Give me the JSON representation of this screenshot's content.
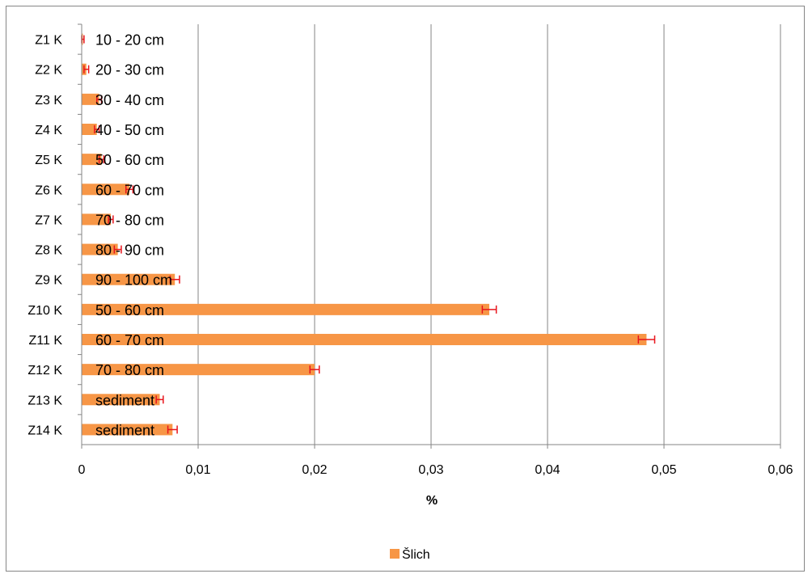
{
  "chart_data": {
    "type": "bar",
    "orientation": "horizontal",
    "categories": [
      "Z1 K",
      "Z2 K",
      "Z3 K",
      "Z4 K",
      "Z5 K",
      "Z6 K",
      "Z7 K",
      "Z8 K",
      "Z9 K",
      "Z10 K",
      "Z11 K",
      "Z12 K",
      "Z13 K",
      "Z14 K"
    ],
    "data_labels": [
      "10 - 20 cm",
      "20 - 30 cm",
      "30 - 40 cm",
      "40 - 50 cm",
      "50 - 60 cm",
      "60 - 70 cm",
      "70 - 80 cm",
      "80 - 90 cm",
      "90 - 100 cm",
      "50 - 60 cm",
      "60 - 70 cm",
      "70 - 80 cm",
      "sediment",
      "sediment"
    ],
    "series": [
      {
        "name": "Šlich",
        "values": [
          0.0001,
          0.0004,
          0.0015,
          0.0013,
          0.0017,
          0.0041,
          0.0025,
          0.0031,
          0.008,
          0.035,
          0.0485,
          0.02,
          0.0067,
          0.0078
        ],
        "error": [
          0.0001,
          0.0002,
          0.0002,
          0.0002,
          0.0002,
          0.0003,
          0.0002,
          0.0003,
          0.0004,
          0.0006,
          0.0007,
          0.0004,
          0.0003,
          0.0004
        ]
      }
    ],
    "xlabel": "%",
    "ylabel": "",
    "xlim": [
      0,
      0.06
    ],
    "x_ticks": [
      "0",
      "0,01",
      "0,02",
      "0,03",
      "0,04",
      "0,05",
      "0,06"
    ],
    "grid": "vertical",
    "legend": "bottom",
    "colors": {
      "bar": "#f79646",
      "error": "#e8141c",
      "grid": "#868686",
      "axis": "#868686",
      "text": "#000000"
    }
  }
}
